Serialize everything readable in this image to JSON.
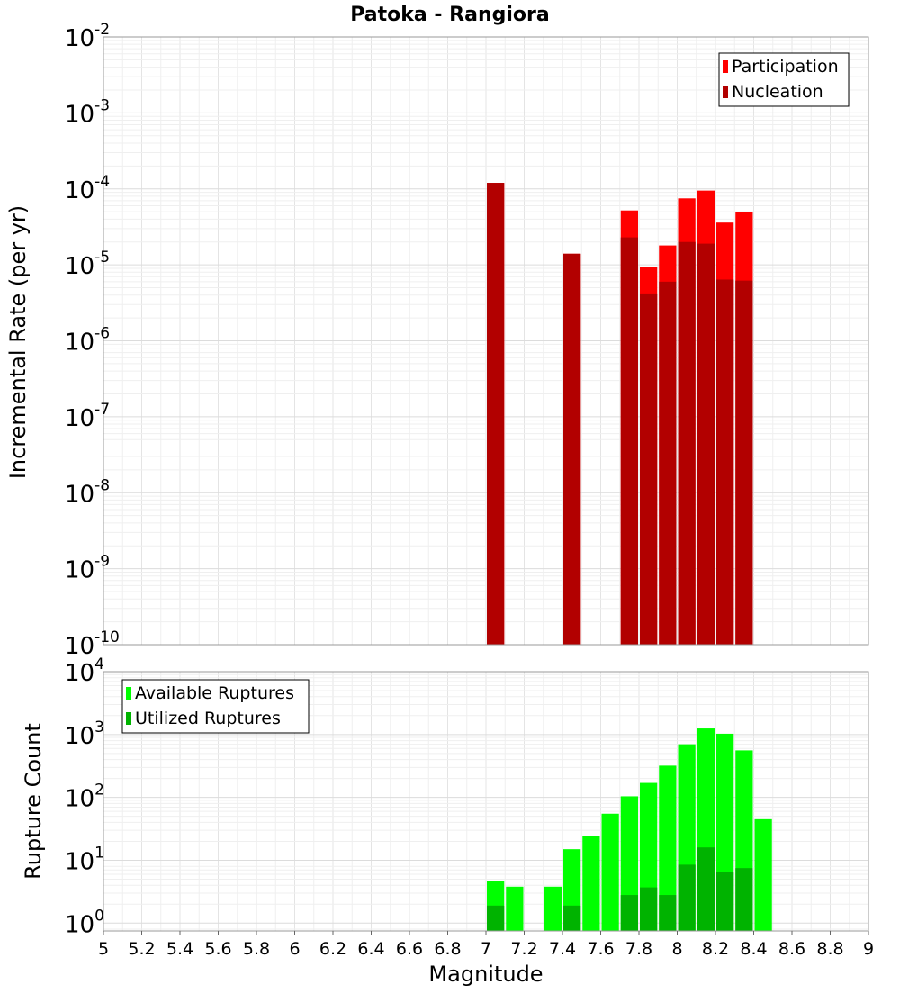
{
  "chart_data": [
    {
      "type": "bar",
      "panel": "top",
      "title": "Patoka - Rangiora",
      "ylabel": "Incremental Rate (per yr)",
      "yscale": "log",
      "ylim": [
        1e-10,
        0.01
      ],
      "xlim": [
        5,
        9
      ],
      "bar_width": 0.1,
      "grid": true,
      "legend_position": "top-right",
      "series": [
        {
          "name": "Participation",
          "color": "#ff0000",
          "points": [
            {
              "x": 7.05,
              "y": 0.00012
            },
            {
              "x": 7.45,
              "y": 1.4e-05
            },
            {
              "x": 7.75,
              "y": 5.2e-05
            },
            {
              "x": 7.85,
              "y": 9.5e-06
            },
            {
              "x": 7.95,
              "y": 1.8e-05
            },
            {
              "x": 8.05,
              "y": 7.5e-05
            },
            {
              "x": 8.15,
              "y": 9.5e-05
            },
            {
              "x": 8.25,
              "y": 3.6e-05
            },
            {
              "x": 8.35,
              "y": 4.9e-05
            }
          ]
        },
        {
          "name": "Nucleation",
          "color": "#b20000",
          "points": [
            {
              "x": 7.05,
              "y": 0.00012
            },
            {
              "x": 7.45,
              "y": 1.4e-05
            },
            {
              "x": 7.75,
              "y": 2.3e-05
            },
            {
              "x": 7.85,
              "y": 4.2e-06
            },
            {
              "x": 7.95,
              "y": 6e-06
            },
            {
              "x": 8.05,
              "y": 2e-05
            },
            {
              "x": 8.15,
              "y": 1.9e-05
            },
            {
              "x": 8.25,
              "y": 6.4e-06
            },
            {
              "x": 8.35,
              "y": 6.2e-06
            }
          ]
        }
      ]
    },
    {
      "type": "bar",
      "panel": "bottom",
      "xlabel": "Magnitude",
      "ylabel": "Rupture Count",
      "yscale": "log",
      "ylim": [
        0.75,
        10000.0
      ],
      "xlim": [
        5,
        9
      ],
      "bar_width": 0.1,
      "grid": true,
      "legend_position": "top-left",
      "x_ticks": [
        "5",
        "5.2",
        "5.4",
        "5.6",
        "5.8",
        "6",
        "6.2",
        "6.4",
        "6.6",
        "6.8",
        "7",
        "7.2",
        "7.4",
        "7.6",
        "7.8",
        "8",
        "8.2",
        "8.4",
        "8.6",
        "8.8",
        "9"
      ],
      "series": [
        {
          "name": "Available Ruptures",
          "color": "#00ff00",
          "points": [
            {
              "x": 7.05,
              "y": 4.7
            },
            {
              "x": 7.15,
              "y": 3.8
            },
            {
              "x": 7.35,
              "y": 3.8
            },
            {
              "x": 7.45,
              "y": 15
            },
            {
              "x": 7.55,
              "y": 24
            },
            {
              "x": 7.65,
              "y": 55
            },
            {
              "x": 7.75,
              "y": 104
            },
            {
              "x": 7.85,
              "y": 170
            },
            {
              "x": 7.95,
              "y": 320
            },
            {
              "x": 8.05,
              "y": 700
            },
            {
              "x": 8.15,
              "y": 1250
            },
            {
              "x": 8.25,
              "y": 1030
            },
            {
              "x": 8.35,
              "y": 560
            },
            {
              "x": 8.45,
              "y": 45
            }
          ]
        },
        {
          "name": "Utilized Ruptures",
          "color": "#00b300",
          "points": [
            {
              "x": 7.05,
              "y": 1.9
            },
            {
              "x": 7.45,
              "y": 1.9
            },
            {
              "x": 7.75,
              "y": 2.8
            },
            {
              "x": 7.85,
              "y": 3.7
            },
            {
              "x": 7.95,
              "y": 2.8
            },
            {
              "x": 8.05,
              "y": 8.5
            },
            {
              "x": 8.15,
              "y": 16
            },
            {
              "x": 8.25,
              "y": 6.5
            },
            {
              "x": 8.35,
              "y": 7.5
            }
          ]
        }
      ]
    }
  ]
}
